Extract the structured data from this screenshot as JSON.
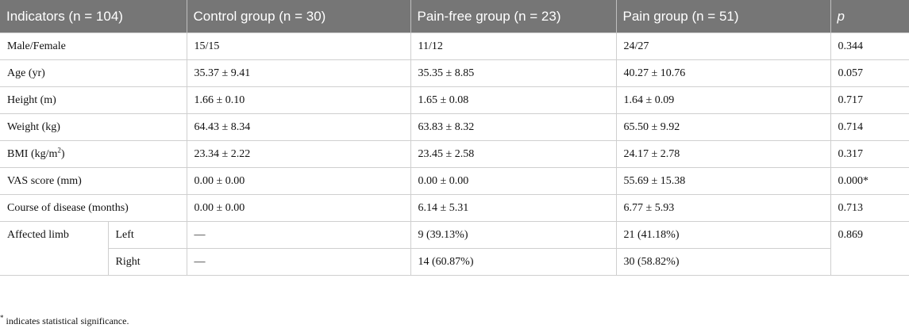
{
  "table": {
    "headers": [
      "Indicators (n = 104)",
      "Control group (n = 30)",
      "Pain-free group (n = 23)",
      "Pain group (n = 51)",
      "p"
    ],
    "rows": [
      {
        "indicator": "Male/Female",
        "control": "15/15",
        "pain_free": "11/12",
        "pain": "24/27",
        "p": "0.344"
      },
      {
        "indicator": "Age (yr)",
        "control": "35.37 ± 9.41",
        "pain_free": "35.35 ± 8.85",
        "pain": "40.27 ± 10.76",
        "p": "0.057"
      },
      {
        "indicator": "Height (m)",
        "control": "1.66 ± 0.10",
        "pain_free": "1.65 ± 0.08",
        "pain": "1.64 ± 0.09",
        "p": "0.717"
      },
      {
        "indicator": "Weight (kg)",
        "control": "64.43 ± 8.34",
        "pain_free": "63.83 ± 8.32",
        "pain": "65.50 ± 9.92",
        "p": "0.714"
      },
      {
        "indicator": "BMI (kg/m",
        "indicator_sup": "2",
        "indicator_suffix": ")",
        "control": "23.34 ± 2.22",
        "pain_free": "23.45 ± 2.58",
        "pain": "24.17 ± 2.78",
        "p": "0.317"
      },
      {
        "indicator": "VAS score (mm)",
        "control": "0.00 ± 0.00",
        "pain_free": "0.00 ± 0.00",
        "pain": "55.69 ± 15.38",
        "p": "0.000*"
      },
      {
        "indicator": "Course of disease (months)",
        "control": "0.00 ± 0.00",
        "pain_free": "6.14 ± 5.31",
        "pain": "6.77 ± 5.93",
        "p": "0.713"
      }
    ],
    "affected": {
      "indicator": "Affected limb",
      "p": "0.869",
      "sub": [
        {
          "side": "Left",
          "control": "—",
          "pain_free": "9 (39.13%)",
          "pain": "21 (41.18%)"
        },
        {
          "side": "Right",
          "control": "—",
          "pain_free": "14 (60.87%)",
          "pain": "30 (58.82%)"
        }
      ]
    }
  },
  "footnote": {
    "mark": "*",
    "text": " indicates statistical significance."
  }
}
